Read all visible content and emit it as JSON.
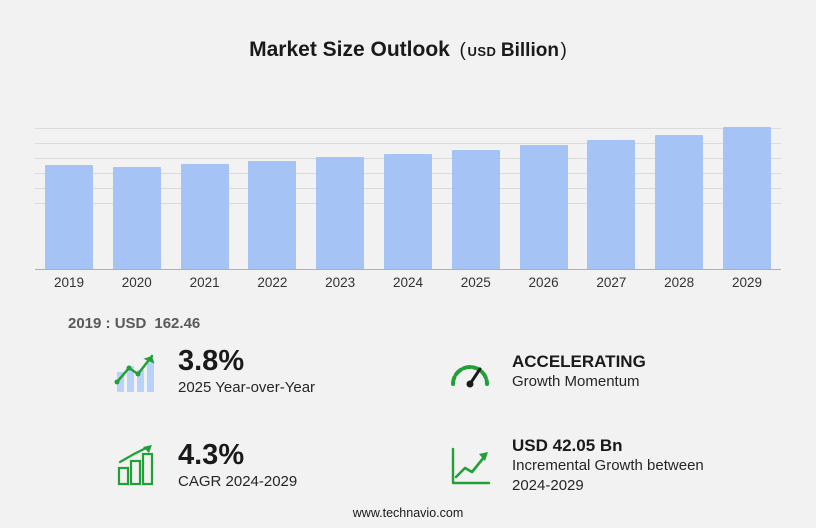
{
  "title": {
    "main": "Market Size Outlook",
    "open": "(",
    "unit_small": "USD",
    "unit_big": "Billion",
    "close": ")"
  },
  "chart_data": {
    "type": "bar",
    "title": "Market Size Outlook (USD Billion)",
    "categories": [
      "2019",
      "2020",
      "2021",
      "2022",
      "2023",
      "2024",
      "2025",
      "2026",
      "2027",
      "2028",
      "2029"
    ],
    "values": [
      162.46,
      158.9,
      163.5,
      169.5,
      175.9,
      180.1,
      186.9,
      194.1,
      201.5,
      210.2,
      222.1
    ],
    "xlabel": "",
    "ylabel": "USD Billion",
    "ylim": [
      0,
      230
    ],
    "grid": true,
    "legend": "none",
    "bar_color": "#a6c3f6",
    "annotation": "2019 : USD 162.46"
  },
  "base_note": {
    "label": "2019 : USD",
    "value": "162.46"
  },
  "stats": [
    {
      "icon": "bar-chart-growth",
      "value": "3.8%",
      "label": "2025 Year-over-Year"
    },
    {
      "icon": "speedometer",
      "value": "ACCELERATING",
      "label": "Growth Momentum"
    },
    {
      "icon": "green-bars",
      "value": "4.3%",
      "label": "CAGR 2024-2029"
    },
    {
      "icon": "line-growth",
      "value": "USD 42.05 Bn",
      "label": "Incremental Growth between 2024-2029"
    }
  ],
  "footer": {
    "url": "www.technavio.com"
  },
  "colors": {
    "accent_green": "#21a038",
    "bar_blue": "#a6c3f6",
    "background": "#f2f2f2"
  }
}
